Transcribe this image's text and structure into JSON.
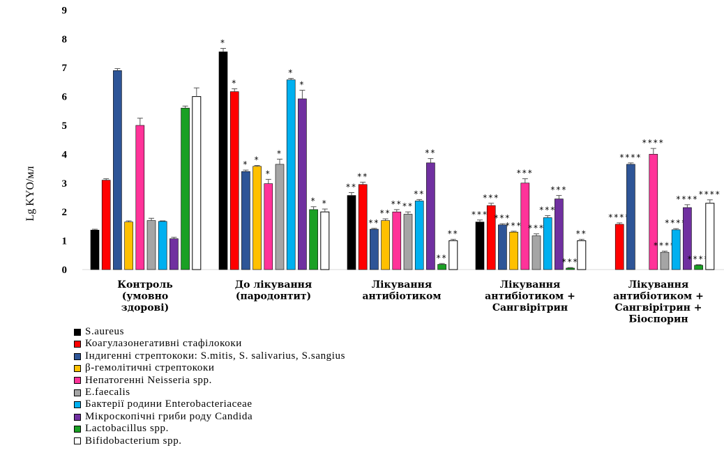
{
  "chart_data": {
    "type": "bar",
    "ylabel": "Lg KYO/мл",
    "ylim": [
      0,
      9
    ],
    "yticks": [
      0,
      1,
      2,
      3,
      4,
      5,
      6,
      7,
      8,
      9
    ],
    "grid": false,
    "legend_position": "bottom-left",
    "categories": [
      [
        "Контроль",
        "(умовно",
        "здорові)"
      ],
      [
        "До лікування",
        "(пародонтит)"
      ],
      [
        "Лікування",
        "антибіотиком"
      ],
      [
        "Лікування",
        "антибіотиком +",
        "Сангвірітрин"
      ],
      [
        "Лікування",
        "антибіотиком +",
        "Сангвірітрин +",
        "Біоспорин"
      ]
    ],
    "series": [
      {
        "name": "S.aureus",
        "color": "#000000",
        "values": [
          1.37,
          7.55,
          2.57,
          1.65,
          null
        ],
        "errors": [
          0.03,
          0.12,
          0.1,
          0.07,
          null
        ],
        "marks": [
          "",
          "*",
          "**",
          "***",
          ""
        ]
      },
      {
        "name": "Коагулазонегативні стафілококи",
        "color": "#ff0000",
        "values": [
          3.1,
          6.17,
          2.95,
          2.22,
          1.57
        ],
        "errors": [
          0.05,
          0.1,
          0.08,
          0.08,
          0.05
        ],
        "marks": [
          "",
          "*",
          "**",
          "***",
          "****"
        ]
      },
      {
        "name": "Індигенні стрептококи: S.mitis,  S. salivarius, S.sangius",
        "color": "#2e5597",
        "values": [
          6.9,
          3.4,
          1.4,
          1.55,
          3.65
        ],
        "errors": [
          0.07,
          0.05,
          0.03,
          0.04,
          0.05
        ],
        "marks": [
          "",
          "*",
          "**",
          "***",
          "****"
        ]
      },
      {
        "name": "β-гемолітичні стрептококи",
        "color": "#ffc000",
        "values": [
          1.65,
          3.58,
          1.7,
          1.3,
          null
        ],
        "errors": [
          0.04,
          0.03,
          0.06,
          0.03,
          null
        ],
        "marks": [
          "",
          "*",
          "**",
          "***",
          ""
        ]
      },
      {
        "name": "Непатогенні Neisseria spp.",
        "color": "#ff3399",
        "values": [
          5.0,
          2.98,
          2.0,
          3.0,
          4.0
        ],
        "errors": [
          0.25,
          0.15,
          0.08,
          0.15,
          0.2
        ],
        "marks": [
          "",
          "*",
          "**",
          "***",
          "****"
        ]
      },
      {
        "name": "E.faecalis",
        "color": "#a5a5a5",
        "values": [
          1.7,
          3.65,
          1.92,
          1.17,
          0.6
        ],
        "errors": [
          0.08,
          0.18,
          0.08,
          0.07,
          0.04
        ],
        "marks": [
          "",
          "*",
          "**",
          "***",
          "****"
        ]
      },
      {
        "name": "Бактерії родини Enterobacteriaceae",
        "color": "#00b0f0",
        "values": [
          1.67,
          6.58,
          2.38,
          1.8,
          1.38
        ],
        "errors": [
          0.02,
          0.05,
          0.05,
          0.07,
          0.04
        ],
        "marks": [
          "",
          "*",
          "**",
          "***",
          "****"
        ]
      },
      {
        "name": "Мікроскопічні гриби роду Candida",
        "color": "#7030a0",
        "values": [
          1.07,
          5.92,
          3.7,
          2.45,
          2.15
        ],
        "errors": [
          0.05,
          0.3,
          0.15,
          0.12,
          0.1
        ],
        "marks": [
          "",
          "*",
          "**",
          "***",
          "****"
        ]
      },
      {
        "name": "Lactobacillus spp.",
        "color": "#1aa024",
        "values": [
          5.6,
          2.08,
          0.18,
          0.05,
          0.15
        ],
        "errors": [
          0.07,
          0.1,
          0.03,
          0.02,
          0.02
        ],
        "marks": [
          "",
          "*",
          "**",
          "***",
          "****"
        ]
      },
      {
        "name": "Bifidobacterium spp.",
        "color": "#ffffff",
        "values": [
          6.0,
          2.0,
          1.0,
          1.0,
          2.3
        ],
        "errors": [
          0.3,
          0.1,
          0.05,
          0.05,
          0.12
        ],
        "marks": [
          "",
          "*",
          "**",
          "**",
          "****"
        ]
      }
    ]
  }
}
